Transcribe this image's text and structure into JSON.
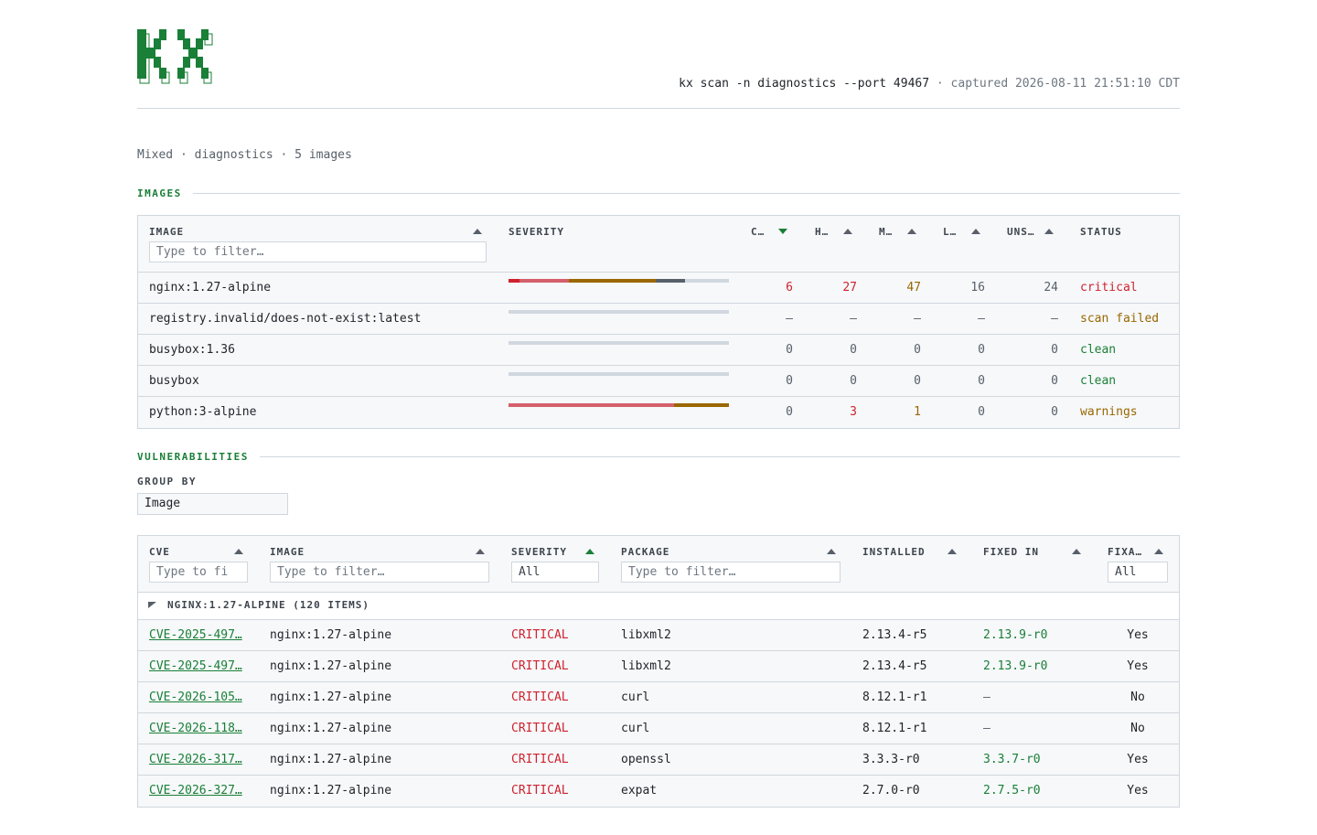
{
  "header": {
    "logo_name": "kx-logo",
    "command": "kx scan -n diagnostics --port 49467",
    "captured": "· captured 2026-08-11 21:51:10 CDT"
  },
  "summary": "Mixed · diagnostics · 5 images",
  "images_section": {
    "title": "IMAGES",
    "columns": {
      "image": "IMAGE",
      "severity": "SEVERITY",
      "critical": "C…",
      "high": "H…",
      "medium": "M…",
      "low": "L…",
      "unspecified": "UNS…",
      "status": "STATUS"
    },
    "filter_placeholder": "Type to filter…",
    "rows": [
      {
        "image": "nginx:1.27-alpine",
        "c": "6",
        "h": "27",
        "m": "47",
        "l": "16",
        "u": "24",
        "status": "critical",
        "bar": {
          "critical": 6,
          "high": 27,
          "medium": 47,
          "low": 16,
          "unspecified": 24
        }
      },
      {
        "image": "registry.invalid/does-not-exist:latest",
        "c": "–",
        "h": "–",
        "m": "–",
        "l": "–",
        "u": "–",
        "status": "scan failed",
        "bar": null
      },
      {
        "image": "busybox:1.36",
        "c": "0",
        "h": "0",
        "m": "0",
        "l": "0",
        "u": "0",
        "status": "clean",
        "bar": null
      },
      {
        "image": "busybox",
        "c": "0",
        "h": "0",
        "m": "0",
        "l": "0",
        "u": "0",
        "status": "clean",
        "bar": null
      },
      {
        "image": "python:3-alpine",
        "c": "0",
        "h": "3",
        "m": "1",
        "l": "0",
        "u": "0",
        "status": "warnings",
        "bar": {
          "critical": 0,
          "high": 3,
          "medium": 1,
          "low": 0,
          "unspecified": 0
        }
      }
    ]
  },
  "vulns_section": {
    "title": "VULNERABILITIES",
    "group_by_label": "GROUP BY",
    "group_by_value": "Image",
    "columns": {
      "cve": "CVE",
      "image": "IMAGE",
      "severity": "SEVERITY",
      "package": "PACKAGE",
      "installed": "INSTALLED",
      "fixed_in": "FIXED IN",
      "fixable": "FIXA…"
    },
    "filters": {
      "cve_placeholder": "Type to fi",
      "image_placeholder": "Type to filter…",
      "severity_value": "All",
      "package_placeholder": "Type to filter…",
      "fixable_value": "All"
    },
    "group_header": "NGINX:1.27-ALPINE (120 ITEMS)",
    "rows": [
      {
        "cve": "CVE-2025-497…",
        "image": "nginx:1.27-alpine",
        "severity": "CRITICAL",
        "package": "libxml2",
        "installed": "2.13.4-r5",
        "fixed": "2.13.9-r0",
        "fixable": "Yes"
      },
      {
        "cve": "CVE-2025-497…",
        "image": "nginx:1.27-alpine",
        "severity": "CRITICAL",
        "package": "libxml2",
        "installed": "2.13.4-r5",
        "fixed": "2.13.9-r0",
        "fixable": "Yes"
      },
      {
        "cve": "CVE-2026-105…",
        "image": "nginx:1.27-alpine",
        "severity": "CRITICAL",
        "package": "curl",
        "installed": "8.12.1-r1",
        "fixed": "–",
        "fixable": "No"
      },
      {
        "cve": "CVE-2026-118…",
        "image": "nginx:1.27-alpine",
        "severity": "CRITICAL",
        "package": "curl",
        "installed": "8.12.1-r1",
        "fixed": "–",
        "fixable": "No"
      },
      {
        "cve": "CVE-2026-317…",
        "image": "nginx:1.27-alpine",
        "severity": "CRITICAL",
        "package": "openssl",
        "installed": "3.3.3-r0",
        "fixed": "3.3.7-r0",
        "fixable": "Yes"
      },
      {
        "cve": "CVE-2026-327…",
        "image": "nginx:1.27-alpine",
        "severity": "CRITICAL",
        "package": "expat",
        "installed": "2.7.0-r0",
        "fixed": "2.7.5-r0",
        "fixable": "Yes"
      }
    ]
  },
  "colors": {
    "accent": "#1a7f37",
    "critical": "#cf222e",
    "high": "#d4606b",
    "medium": "#9a6700",
    "low": "#57606a",
    "unspecified": "#d0d7de"
  }
}
